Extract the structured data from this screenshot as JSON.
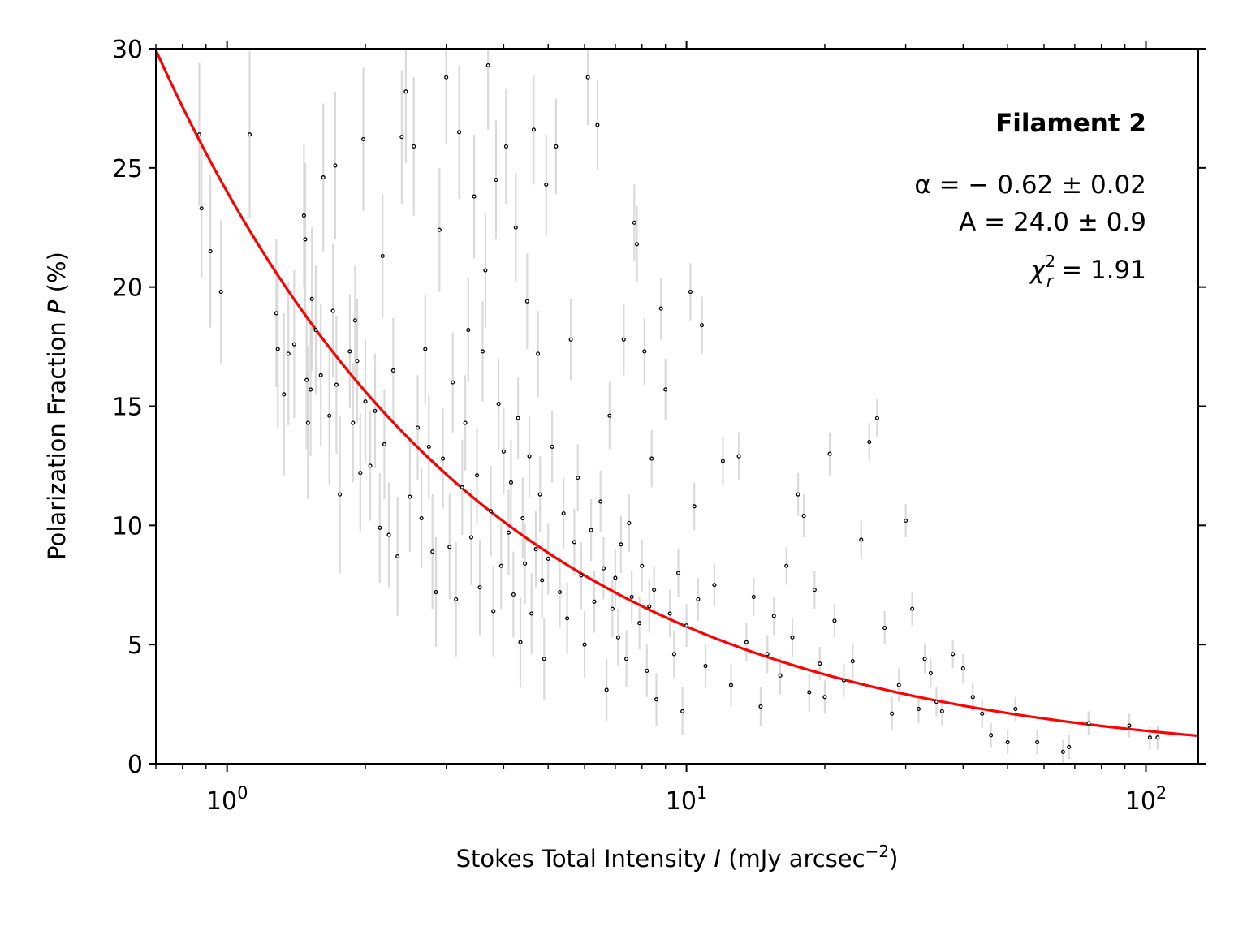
{
  "chart_data": {
    "type": "scatter",
    "title": "",
    "xlabel": {
      "prefix": "Stokes Total Intensity ",
      "var": "I",
      "units_pre": " (mJy arcsec",
      "units_sup": "−2",
      "units_post": ")"
    },
    "ylabel": {
      "prefix": "Polarization Fraction ",
      "var": "P",
      "suffix": " (%)"
    },
    "xscale": "log",
    "xlim": [
      0.7,
      130
    ],
    "ylim": [
      0,
      30
    ],
    "xticks": [
      {
        "value": 1,
        "base": "10",
        "exp": "0"
      },
      {
        "value": 10,
        "base": "10",
        "exp": "1"
      },
      {
        "value": 100,
        "base": "10",
        "exp": "2"
      }
    ],
    "yticks": [
      0,
      5,
      10,
      15,
      20,
      25,
      30
    ],
    "ytick_labels": [
      "0",
      "5",
      "10",
      "15",
      "20",
      "25",
      "30"
    ],
    "annotation": {
      "title": "Filament 2",
      "alpha": "α = − 0.62 ± 0.02",
      "A": "A = 24.0 ± 0.9",
      "chi_sym": "χ",
      "chi_sup": "2",
      "chi_sub": "r",
      "chi_val": " = 1.91",
      "placement": "top-right"
    },
    "fit": {
      "model": "power law P = A * I^alpha",
      "A": 24.0,
      "alpha": -0.62,
      "color": "#ff0000"
    },
    "series": [
      {
        "name": "data",
        "marker_color": "#000000",
        "errorbar_color": "#d3d3d3",
        "points": [
          [
            0.87,
            26.4,
            3.0
          ],
          [
            0.88,
            23.3,
            2.9
          ],
          [
            0.92,
            21.5,
            3.2
          ],
          [
            0.97,
            19.8,
            3.0
          ],
          [
            1.12,
            26.4,
            3.5
          ],
          [
            1.28,
            18.9,
            3.1
          ],
          [
            1.29,
            17.4,
            3.3
          ],
          [
            1.33,
            15.5,
            3.4
          ],
          [
            1.36,
            17.2,
            3.0
          ],
          [
            1.4,
            17.6,
            3.1
          ],
          [
            1.47,
            23.0,
            3.0
          ],
          [
            1.48,
            22.0,
            3.2
          ],
          [
            1.49,
            16.1,
            2.9
          ],
          [
            1.5,
            14.3,
            3.2
          ],
          [
            1.52,
            15.7,
            2.8
          ],
          [
            1.53,
            19.5,
            3.0
          ],
          [
            1.56,
            18.2,
            2.7
          ],
          [
            1.6,
            16.3,
            3.0
          ],
          [
            1.62,
            24.6,
            3.1
          ],
          [
            1.67,
            14.6,
            2.9
          ],
          [
            1.7,
            19.0,
            2.8
          ],
          [
            1.72,
            25.1,
            3.1
          ],
          [
            1.73,
            15.9,
            2.9
          ],
          [
            1.76,
            11.3,
            3.3
          ],
          [
            1.85,
            17.3,
            2.4
          ],
          [
            1.9,
            18.6,
            2.3
          ],
          [
            1.92,
            16.9,
            2.6
          ],
          [
            1.88,
            14.3,
            2.5
          ],
          [
            1.95,
            12.2,
            2.5
          ],
          [
            1.98,
            26.2,
            3.0
          ],
          [
            2.0,
            15.2,
            2.6
          ],
          [
            2.05,
            12.5,
            2.3
          ],
          [
            2.1,
            14.8,
            2.4
          ],
          [
            2.15,
            9.9,
            2.3
          ],
          [
            2.18,
            21.3,
            2.6
          ],
          [
            2.2,
            13.4,
            2.3
          ],
          [
            2.25,
            9.6,
            2.2
          ],
          [
            2.3,
            16.5,
            2.2
          ],
          [
            2.35,
            8.7,
            2.5
          ],
          [
            2.4,
            26.3,
            2.8
          ],
          [
            2.45,
            28.2,
            3.0
          ],
          [
            2.5,
            11.2,
            2.3
          ],
          [
            2.55,
            25.9,
            2.9
          ],
          [
            2.6,
            14.1,
            2.2
          ],
          [
            2.65,
            10.3,
            2.1
          ],
          [
            2.7,
            17.4,
            2.3
          ],
          [
            2.75,
            13.3,
            2.2
          ],
          [
            2.8,
            8.9,
            2.4
          ],
          [
            2.85,
            7.2,
            2.3
          ],
          [
            2.9,
            22.4,
            2.6
          ],
          [
            2.95,
            12.8,
            2.1
          ],
          [
            3.0,
            28.8,
            2.8
          ],
          [
            3.05,
            9.1,
            2.2
          ],
          [
            3.1,
            16.0,
            2.1
          ],
          [
            3.15,
            6.9,
            2.4
          ],
          [
            3.2,
            26.5,
            2.8
          ],
          [
            3.25,
            11.6,
            2.0
          ],
          [
            3.3,
            14.3,
            2.0
          ],
          [
            3.35,
            18.2,
            2.2
          ],
          [
            3.4,
            9.5,
            2.0
          ],
          [
            3.45,
            23.8,
            2.6
          ],
          [
            3.5,
            12.1,
            2.0
          ],
          [
            3.55,
            7.4,
            2.0
          ],
          [
            3.6,
            17.3,
            2.1
          ],
          [
            3.65,
            20.7,
            2.4
          ],
          [
            3.7,
            29.3,
            2.7
          ],
          [
            3.75,
            10.6,
            1.9
          ],
          [
            3.8,
            6.4,
            1.9
          ],
          [
            3.85,
            24.5,
            2.5
          ],
          [
            3.9,
            15.1,
            1.9
          ],
          [
            3.95,
            8.3,
            1.8
          ],
          [
            4.0,
            13.1,
            1.8
          ],
          [
            4.05,
            25.9,
            2.4
          ],
          [
            4.1,
            9.7,
            1.8
          ],
          [
            4.15,
            11.8,
            1.8
          ],
          [
            4.2,
            7.1,
            1.8
          ],
          [
            4.25,
            22.5,
            2.3
          ],
          [
            4.3,
            14.5,
            1.7
          ],
          [
            4.35,
            5.1,
            1.9
          ],
          [
            4.4,
            10.3,
            1.7
          ],
          [
            4.45,
            8.4,
            1.7
          ],
          [
            4.5,
            19.4,
            2.0
          ],
          [
            4.55,
            12.9,
            1.7
          ],
          [
            4.6,
            6.3,
            1.7
          ],
          [
            4.65,
            26.6,
            2.3
          ],
          [
            4.7,
            9.0,
            1.6
          ],
          [
            4.75,
            17.2,
            1.8
          ],
          [
            4.8,
            11.3,
            1.6
          ],
          [
            4.85,
            7.7,
            1.6
          ],
          [
            4.9,
            4.4,
            1.7
          ],
          [
            4.95,
            24.3,
            2.1
          ],
          [
            5.0,
            8.6,
            1.5
          ],
          [
            5.1,
            13.3,
            1.5
          ],
          [
            5.2,
            25.9,
            2.0
          ],
          [
            5.3,
            7.2,
            1.5
          ],
          [
            5.4,
            10.5,
            1.5
          ],
          [
            5.5,
            6.1,
            1.5
          ],
          [
            5.6,
            17.8,
            1.7
          ],
          [
            5.7,
            9.3,
            1.4
          ],
          [
            5.8,
            12.0,
            1.4
          ],
          [
            5.9,
            7.9,
            1.4
          ],
          [
            6.0,
            5.0,
            1.4
          ],
          [
            6.1,
            28.8,
            2.0
          ],
          [
            6.2,
            9.8,
            1.3
          ],
          [
            6.3,
            6.8,
            1.3
          ],
          [
            6.4,
            26.8,
            1.9
          ],
          [
            6.5,
            11.0,
            1.3
          ],
          [
            6.6,
            8.2,
            1.3
          ],
          [
            6.7,
            3.1,
            1.3
          ],
          [
            6.8,
            14.6,
            1.4
          ],
          [
            6.9,
            6.5,
            1.2
          ],
          [
            7.0,
            7.8,
            1.2
          ],
          [
            7.1,
            5.3,
            1.2
          ],
          [
            7.2,
            9.2,
            1.2
          ],
          [
            7.3,
            17.8,
            1.5
          ],
          [
            7.4,
            4.4,
            1.2
          ],
          [
            7.5,
            10.1,
            1.2
          ],
          [
            7.6,
            7.0,
            1.1
          ],
          [
            7.7,
            22.7,
            1.6
          ],
          [
            7.8,
            21.8,
            1.6
          ],
          [
            7.9,
            5.9,
            1.1
          ],
          [
            8.0,
            8.3,
            1.1
          ],
          [
            8.1,
            17.3,
            1.4
          ],
          [
            8.2,
            3.9,
            1.1
          ],
          [
            8.3,
            6.6,
            1.1
          ],
          [
            8.4,
            12.8,
            1.2
          ],
          [
            8.5,
            7.3,
            1.0
          ],
          [
            8.6,
            2.7,
            1.1
          ],
          [
            8.8,
            19.1,
            1.3
          ],
          [
            9.0,
            15.7,
            1.3
          ],
          [
            9.2,
            6.3,
            1.0
          ],
          [
            9.4,
            4.6,
            1.0
          ],
          [
            9.6,
            8.0,
            1.0
          ],
          [
            9.8,
            2.2,
            1.0
          ],
          [
            10.0,
            5.8,
            0.9
          ],
          [
            10.2,
            19.8,
            1.2
          ],
          [
            10.4,
            10.8,
            1.0
          ],
          [
            10.6,
            6.9,
            0.9
          ],
          [
            10.8,
            18.4,
            1.2
          ],
          [
            11.0,
            4.1,
            0.9
          ],
          [
            11.5,
            7.5,
            0.9
          ],
          [
            12.0,
            12.7,
            1.0
          ],
          [
            12.5,
            3.3,
            0.9
          ],
          [
            13.0,
            12.9,
            1.0
          ],
          [
            13.5,
            5.1,
            0.8
          ],
          [
            14.0,
            7.0,
            0.8
          ],
          [
            14.5,
            2.4,
            0.8
          ],
          [
            15.0,
            4.6,
            0.8
          ],
          [
            15.5,
            6.2,
            0.8
          ],
          [
            16.0,
            3.7,
            0.8
          ],
          [
            16.5,
            8.3,
            0.8
          ],
          [
            17.0,
            5.3,
            0.8
          ],
          [
            17.5,
            11.3,
            0.9
          ],
          [
            18.0,
            10.4,
            0.9
          ],
          [
            18.5,
            3.0,
            0.8
          ],
          [
            19.0,
            7.3,
            0.8
          ],
          [
            19.5,
            4.2,
            0.7
          ],
          [
            20.0,
            2.8,
            0.7
          ],
          [
            20.5,
            13.0,
            0.9
          ],
          [
            21.0,
            6.0,
            0.7
          ],
          [
            22.0,
            3.5,
            0.7
          ],
          [
            23.0,
            4.3,
            0.7
          ],
          [
            24.0,
            9.4,
            0.8
          ],
          [
            25.0,
            13.5,
            0.8
          ],
          [
            26.0,
            14.5,
            0.8
          ],
          [
            27.0,
            5.7,
            0.7
          ],
          [
            28.0,
            2.1,
            0.7
          ],
          [
            29.0,
            3.3,
            0.7
          ],
          [
            30.0,
            10.2,
            0.7
          ],
          [
            31.0,
            6.5,
            0.7
          ],
          [
            32.0,
            2.3,
            0.6
          ],
          [
            33.0,
            4.4,
            0.6
          ],
          [
            34.0,
            3.8,
            0.6
          ],
          [
            35.0,
            2.6,
            0.6
          ],
          [
            36.0,
            2.2,
            0.6
          ],
          [
            38.0,
            4.6,
            0.6
          ],
          [
            40.0,
            4.0,
            0.6
          ],
          [
            42.0,
            2.8,
            0.6
          ],
          [
            44.0,
            2.1,
            0.6
          ],
          [
            46.0,
            1.2,
            0.5
          ],
          [
            50.0,
            0.9,
            0.5
          ],
          [
            52.0,
            2.3,
            0.5
          ],
          [
            58.0,
            0.9,
            0.5
          ],
          [
            66.0,
            0.5,
            0.5
          ],
          [
            68.0,
            0.7,
            0.5
          ],
          [
            75.0,
            1.7,
            0.5
          ],
          [
            92.0,
            1.6,
            0.5
          ],
          [
            102.0,
            1.1,
            0.5
          ],
          [
            106.0,
            1.1,
            0.5
          ]
        ]
      }
    ]
  }
}
